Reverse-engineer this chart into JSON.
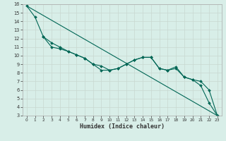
{
  "xlabel": "Humidex (Indice chaleur)",
  "xlim": [
    -0.5,
    23.5
  ],
  "ylim": [
    3,
    16
  ],
  "xticks": [
    0,
    1,
    2,
    3,
    4,
    5,
    6,
    7,
    8,
    9,
    10,
    11,
    12,
    13,
    14,
    15,
    16,
    17,
    18,
    19,
    20,
    21,
    22,
    23
  ],
  "yticks": [
    3,
    4,
    5,
    6,
    7,
    8,
    9,
    10,
    11,
    12,
    13,
    14,
    15,
    16
  ],
  "bg_color": "#d8eee8",
  "grid_color": "#c8d8d0",
  "line_color": "#006655",
  "line1_x": [
    0,
    1,
    2,
    3,
    4,
    5,
    6,
    7,
    8,
    9,
    10,
    11,
    12,
    13,
    14,
    15,
    16,
    17,
    18,
    19,
    20,
    21,
    22,
    23
  ],
  "line1_y": [
    15.8,
    14.5,
    12.2,
    11.5,
    11.0,
    10.5,
    10.1,
    9.7,
    9.0,
    8.3,
    8.3,
    8.5,
    9.0,
    9.5,
    9.8,
    9.8,
    8.5,
    8.3,
    8.5,
    7.5,
    7.2,
    6.5,
    4.5,
    3.0
  ],
  "line2_x": [
    0,
    23
  ],
  "line2_y": [
    15.8,
    3.0
  ],
  "line3_x": [
    2,
    3,
    4,
    5,
    6,
    7,
    8,
    9,
    10,
    11,
    12,
    13,
    14,
    15,
    16,
    17,
    18,
    19,
    20,
    21,
    22,
    23
  ],
  "line3_y": [
    12.2,
    11.0,
    10.8,
    10.5,
    10.1,
    9.7,
    9.0,
    8.8,
    8.3,
    8.5,
    9.0,
    9.5,
    9.8,
    9.8,
    8.5,
    8.3,
    8.7,
    7.5,
    7.2,
    7.0,
    6.0,
    3.0
  ]
}
